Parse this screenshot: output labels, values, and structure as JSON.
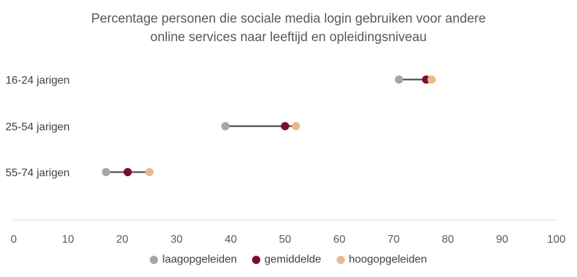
{
  "chart_data": {
    "type": "scatter",
    "subtype": "dumbbell",
    "title_lines": [
      "Percentage personen die sociale media login gebruiken voor andere",
      "online services naar leeftijd en opleidingsniveau"
    ],
    "categories": [
      "16-24 jarigen",
      "25-54 jarigen",
      "55-74 jarigen"
    ],
    "series": [
      {
        "name": "laagopgeleiden",
        "color": "#a6a6a6",
        "values": [
          71,
          39,
          17
        ]
      },
      {
        "name": "gemiddelde",
        "color": "#7b0c33",
        "values": [
          76,
          50,
          21
        ]
      },
      {
        "name": "hoogopgeleiden",
        "color": "#e7b98c",
        "values": [
          77,
          52,
          25
        ]
      }
    ],
    "connector_color": "#595959",
    "xlim": [
      0,
      100
    ],
    "xticks": [
      "0",
      "10",
      "20",
      "30",
      "40",
      "50",
      "60",
      "70",
      "80",
      "90",
      "100"
    ],
    "grid": false,
    "legend_position": "bottom"
  }
}
